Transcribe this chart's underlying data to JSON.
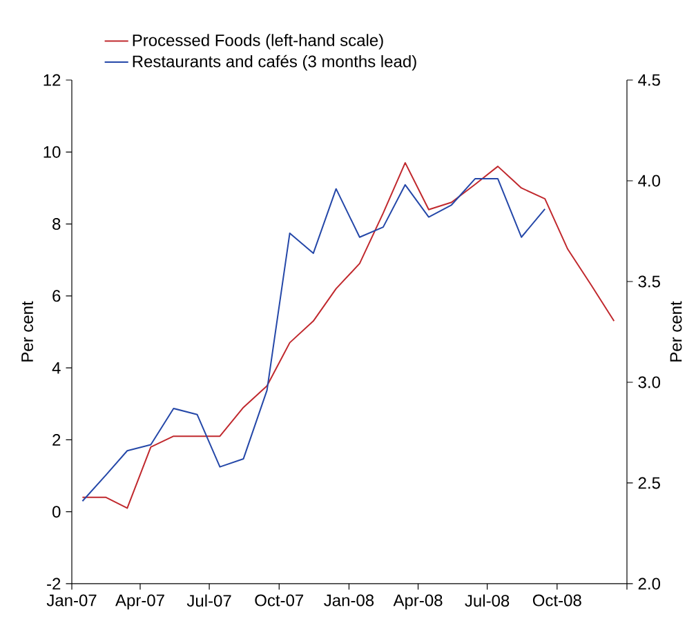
{
  "chart_data": {
    "type": "line",
    "ylabel": "Per cent",
    "y2label": "Per cent",
    "xlim": [
      "2007-01-01",
      "2009-01-01"
    ],
    "xticks": [
      {
        "value": "2007-01-01",
        "label": "Jan-07"
      },
      {
        "value": "2007-04-01",
        "label": "Apr-07"
      },
      {
        "value": "2007-07-01",
        "label": "Jul-07"
      },
      {
        "value": "2007-10-01",
        "label": "Oct-07"
      },
      {
        "value": "2008-01-01",
        "label": "Jan-08"
      },
      {
        "value": "2008-04-01",
        "label": "Apr-08"
      },
      {
        "value": "2008-07-01",
        "label": "Jul-08"
      },
      {
        "value": "2008-10-01",
        "label": "Oct-08"
      },
      {
        "value": "2009-01-01",
        "label": null
      }
    ],
    "ylim": [
      -2,
      12
    ],
    "yticks": [
      -2,
      0,
      2,
      4,
      6,
      8,
      10,
      12
    ],
    "y2lim": [
      2,
      4.5
    ],
    "y2ticks": [
      {
        "value": 2,
        "label": "2.0"
      },
      {
        "value": 2.5,
        "label": "2.5"
      },
      {
        "value": 3,
        "label": "3.0"
      },
      {
        "value": 3.5,
        "label": "3.5"
      },
      {
        "value": 4,
        "label": "4.0"
      },
      {
        "value": 4.5,
        "label": "4.5"
      }
    ],
    "x": [
      "2007-01-15",
      "2007-02-15",
      "2007-03-15",
      "2007-04-15",
      "2007-05-15",
      "2007-06-15",
      "2007-07-15",
      "2007-08-15",
      "2007-09-15",
      "2007-10-15",
      "2007-11-15",
      "2007-12-15",
      "2008-01-15",
      "2008-02-15",
      "2008-03-15",
      "2008-04-15",
      "2008-05-15",
      "2008-06-15",
      "2008-07-15",
      "2008-08-15",
      "2008-09-15",
      "2008-10-15",
      "2008-11-15",
      "2008-12-15"
    ],
    "series": [
      {
        "name": "Processed Foods (left-hand scale)",
        "color": "#c0282d",
        "values": [
          0.4,
          0.4,
          0.1,
          1.8,
          2.1,
          2.1,
          2.1,
          2.9,
          3.5,
          4.7,
          5.3,
          6.2,
          6.9,
          8.3,
          9.7,
          8.4,
          8.6,
          9.1,
          9.6,
          9.0,
          8.7,
          7.3,
          6.3,
          5.3
        ]
      },
      {
        "name": "Restaurants and cafés (3 months lead)",
        "color": "#2447a8",
        "axis": "y2",
        "values": [
          2.41,
          2.54,
          2.66,
          2.69,
          2.87,
          2.84,
          2.58,
          2.62,
          2.96,
          3.74,
          3.64,
          3.96,
          3.72,
          3.77,
          3.98,
          3.82,
          3.88,
          4.01,
          4.01,
          3.72,
          3.86,
          null,
          null,
          null
        ]
      }
    ],
    "grid": false,
    "legend": "top",
    "marker": "none",
    "line_style": "solid"
  }
}
